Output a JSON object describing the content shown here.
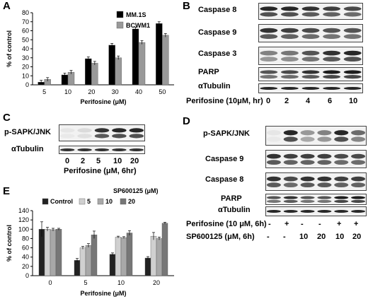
{
  "panels": {
    "A": "A",
    "B": "B",
    "C": "C",
    "D": "D",
    "E": "E"
  },
  "chart_data": [
    {
      "type": "bar",
      "panel": "A",
      "categories": [
        "5",
        "10",
        "20",
        "30",
        "40",
        "50"
      ],
      "series": [
        {
          "name": "MM.1S",
          "color": "#000000",
          "values": [
            3,
            11,
            29,
            44,
            62,
            68
          ]
        },
        {
          "name": "BCWM1",
          "color": "#999999",
          "values": [
            6,
            14,
            24,
            30,
            47,
            55
          ]
        }
      ],
      "xlabel": "Perifosine (μM)",
      "ylabel": "% of control",
      "ylim": [
        0,
        80
      ],
      "yticks": [
        0,
        10,
        20,
        30,
        40,
        50,
        60,
        70,
        80
      ],
      "legend": "top-right"
    },
    {
      "type": "bar",
      "panel": "E",
      "categories": [
        "0",
        "5",
        "10",
        "20"
      ],
      "legend_title": "SP600125 (μM)",
      "series": [
        {
          "name": "Control",
          "color": "#222222",
          "values": [
            100,
            33,
            46,
            38
          ]
        },
        {
          "name": "5",
          "color": "#d0d0d0",
          "values": [
            100,
            60,
            83,
            85
          ]
        },
        {
          "name": "10",
          "color": "#a8a8a8",
          "values": [
            99,
            65,
            82,
            80
          ]
        },
        {
          "name": "20",
          "color": "#777777",
          "values": [
            100,
            88,
            92,
            113
          ]
        }
      ],
      "xlabel": "Perifosine (μM)",
      "ylabel": "% of control",
      "ylim": [
        0,
        140
      ],
      "yticks": [
        0,
        20,
        40,
        60,
        80,
        100,
        120,
        140
      ],
      "legend": "top"
    }
  ],
  "blot_b": {
    "labels": [
      "Caspase 8",
      "Caspase 9",
      "Caspase 3",
      "PARP",
      "αTubulin"
    ],
    "xlabel": "Perifosine (10μM, hr)",
    "xvalues": [
      "0",
      "2",
      "4",
      "6",
      "10"
    ]
  },
  "blot_c": {
    "labels": [
      "p-SAPK/JNK",
      "αTubulin"
    ],
    "xvalues": [
      "0",
      "2",
      "5",
      "10",
      "20"
    ],
    "xlabel": "Perifosine (μM, 6hr)"
  },
  "blot_d": {
    "labels": [
      "p-SAPK/JNK",
      "Caspase 9",
      "Caspase 8",
      "PARP",
      "αTubulin"
    ],
    "row1_label": "Perifosine (10 μM, 6h)",
    "row1_values": [
      "-",
      "+",
      "-",
      "-",
      "+",
      "+"
    ],
    "row2_label": "SP600125 (μM, 6h)",
    "row2_values": [
      "-",
      "-",
      "10",
      "20",
      "10",
      "20"
    ]
  }
}
